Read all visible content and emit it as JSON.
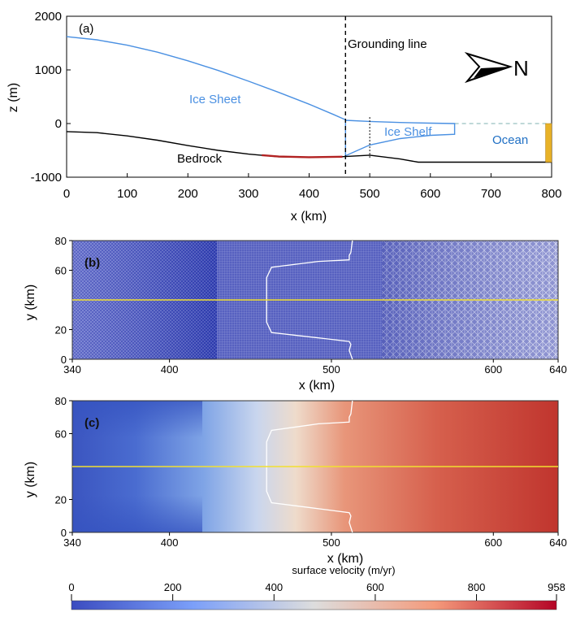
{
  "chart_data": [
    {
      "panel": "(a)",
      "type": "line",
      "xlabel": "x (km)",
      "ylabel": "z (m)",
      "xlim": [
        0,
        800
      ],
      "ylim": [
        -1000,
        2000
      ],
      "xticks": [
        0,
        100,
        200,
        300,
        400,
        500,
        600,
        700,
        800
      ],
      "yticks": [
        2000,
        1000,
        0,
        -1000
      ],
      "grid": false,
      "series": [
        {
          "name": "Ice Sheet",
          "color": "#4a90e2",
          "x": [
            0,
            50,
            100,
            150,
            200,
            250,
            300,
            350,
            400,
            440,
            460
          ],
          "y": [
            1620,
            1560,
            1460,
            1330,
            1170,
            990,
            790,
            580,
            360,
            170,
            70
          ]
        },
        {
          "name": "Ice Shelf",
          "color": "#4a90e2",
          "upper": {
            "x": [
              460,
              500,
              550,
              600,
              640
            ],
            "y": [
              60,
              40,
              20,
              8,
              0
            ]
          },
          "lower": {
            "x": [
              460,
              500,
              550,
              600,
              640
            ],
            "y": [
              -600,
              -400,
              -280,
              -220,
              -200
            ]
          }
        },
        {
          "name": "Bedrock",
          "color": "#000000",
          "x": [
            0,
            50,
            100,
            150,
            200,
            250,
            300,
            350,
            400,
            450,
            500,
            550,
            580,
            650,
            700,
            800
          ],
          "y": [
            -150,
            -170,
            -230,
            -310,
            -410,
            -500,
            -570,
            -620,
            -630,
            -620,
            -590,
            -660,
            -720,
            -720,
            -720,
            -720
          ]
        },
        {
          "name": "",
          "color": "#b22222",
          "x": [
            322,
            350,
            400,
            455
          ],
          "y": [
            -590,
            -615,
            -628,
            -618
          ]
        }
      ],
      "grounding_line_x": 460,
      "shelf_marker_x": 500,
      "sea_level": 0,
      "annotations": [
        {
          "text": "Grounding line"
        },
        {
          "text": "Ice Sheet"
        },
        {
          "text": "Ice Shelf"
        },
        {
          "text": "Ocean"
        },
        {
          "text": "Bedrock"
        },
        {
          "text": "N"
        }
      ],
      "ocean_wall": {
        "x": [
          790,
          800
        ],
        "y": [
          -720,
          0
        ],
        "color": "#e8b228"
      }
    },
    {
      "panel": "(b)",
      "type": "heatmap",
      "xlabel": "x (km)",
      "ylabel": "y (km)",
      "xlim": [
        340,
        640
      ],
      "ylim": [
        0,
        80
      ],
      "xticks": [
        340,
        400,
        500,
        600,
        640
      ],
      "yticks": [
        0,
        20,
        60,
        80
      ],
      "centerline_y": 40,
      "grounding_line": {
        "x": [
          513,
          512,
          511,
          511,
          492,
          463,
          460,
          460,
          463,
          495,
          511,
          512,
          511,
          513
        ],
        "y": [
          80,
          72,
          70,
          67,
          66,
          62,
          55,
          25,
          18,
          14,
          12,
          10,
          6,
          0
        ]
      }
    },
    {
      "panel": "(c)",
      "type": "heatmap",
      "xlabel": "x (km)",
      "ylabel": "y (km)",
      "xlim": [
        340,
        640
      ],
      "ylim": [
        0,
        80
      ],
      "xticks": [
        340,
        400,
        500,
        600,
        640
      ],
      "yticks": [
        0,
        20,
        60,
        80
      ],
      "centerline_y": 40,
      "colorbar": {
        "label": "surface velocity (m/yr)",
        "ticks": [
          0,
          200,
          400,
          600,
          800,
          958
        ],
        "range": [
          0,
          958
        ]
      }
    }
  ]
}
